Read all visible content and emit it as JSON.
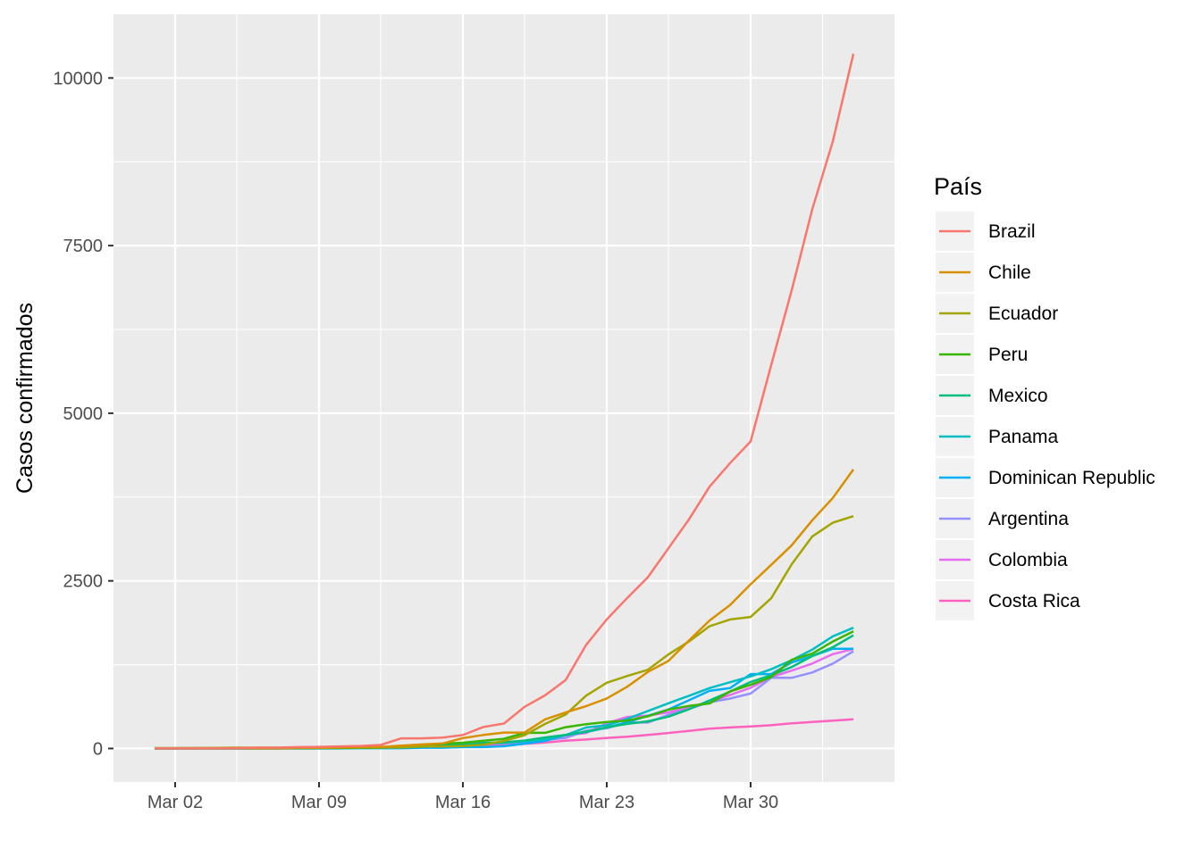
{
  "chart_data": {
    "type": "line",
    "ylabel": "Casos confirmados",
    "legend_title": "País",
    "legend_position": "right",
    "grid": true,
    "x_tick_labels": [
      "Mar 02",
      "Mar 09",
      "Mar 16",
      "Mar 23",
      "Mar 30"
    ],
    "x_tick_dates": [
      "2020-03-02",
      "2020-03-09",
      "2020-03-16",
      "2020-03-23",
      "2020-03-30"
    ],
    "xlim": [
      "2020-02-28",
      "2020-04-06"
    ],
    "y_ticks": [
      0,
      2500,
      5000,
      7500,
      10000
    ],
    "ylim": [
      -500,
      10950
    ],
    "x": [
      "2020-03-01",
      "2020-03-02",
      "2020-03-03",
      "2020-03-04",
      "2020-03-05",
      "2020-03-06",
      "2020-03-07",
      "2020-03-08",
      "2020-03-09",
      "2020-03-10",
      "2020-03-11",
      "2020-03-12",
      "2020-03-13",
      "2020-03-14",
      "2020-03-15",
      "2020-03-16",
      "2020-03-17",
      "2020-03-18",
      "2020-03-19",
      "2020-03-20",
      "2020-03-21",
      "2020-03-22",
      "2020-03-23",
      "2020-03-24",
      "2020-03-25",
      "2020-03-26",
      "2020-03-27",
      "2020-03-28",
      "2020-03-29",
      "2020-03-30",
      "2020-03-31",
      "2020-04-01",
      "2020-04-02",
      "2020-04-03",
      "2020-04-04"
    ],
    "series": [
      {
        "name": "Brazil",
        "color": "#F8766D",
        "values": [
          2,
          2,
          2,
          4,
          4,
          13,
          13,
          20,
          25,
          31,
          38,
          52,
          151,
          151,
          162,
          200,
          321,
          372,
          621,
          793,
          1021,
          1546,
          1924,
          2247,
          2554,
          2985,
          3417,
          3904,
          4256,
          4579,
          5717,
          6836,
          8044,
          9056,
          10360
        ]
      },
      {
        "name": "Chile",
        "color": "#D89000",
        "values": [
          0,
          0,
          1,
          1,
          4,
          4,
          4,
          8,
          10,
          13,
          23,
          23,
          43,
          61,
          74,
          155,
          201,
          238,
          238,
          434,
          537,
          632,
          746,
          922,
          1142,
          1306,
          1610,
          1909,
          2139,
          2449,
          2738,
          3031,
          3404,
          3737,
          4161
        ]
      },
      {
        "name": "Ecuador",
        "color": "#A3A500",
        "values": [
          6,
          6,
          7,
          10,
          13,
          13,
          13,
          14,
          15,
          15,
          17,
          17,
          17,
          28,
          28,
          37,
          58,
          111,
          199,
          367,
          506,
          789,
          981,
          1082,
          1173,
          1403,
          1595,
          1823,
          1924,
          1962,
          2240,
          2748,
          3163,
          3368,
          3465
        ]
      },
      {
        "name": "Peru",
        "color": "#39B600",
        "values": [
          0,
          0,
          0,
          0,
          0,
          1,
          1,
          6,
          7,
          9,
          11,
          11,
          38,
          43,
          71,
          86,
          117,
          145,
          234,
          234,
          318,
          363,
          395,
          416,
          480,
          580,
          635,
          671,
          852,
          950,
          1065,
          1323,
          1414,
          1595,
          1746
        ]
      },
      {
        "name": "Mexico",
        "color": "#00BF7D",
        "values": [
          5,
          5,
          5,
          5,
          5,
          6,
          6,
          7,
          7,
          7,
          8,
          12,
          12,
          26,
          41,
          53,
          82,
          93,
          118,
          164,
          203,
          251,
          316,
          367,
          405,
          475,
          585,
          717,
          848,
          993,
          1094,
          1215,
          1378,
          1510,
          1688
        ]
      },
      {
        "name": "Panama",
        "color": "#00BFC4",
        "values": [
          0,
          0,
          0,
          0,
          0,
          0,
          0,
          0,
          1,
          1,
          8,
          14,
          27,
          36,
          43,
          55,
          69,
          86,
          109,
          137,
          200,
          313,
          345,
          443,
          558,
          674,
          786,
          901,
          989,
          1075,
          1181,
          1317,
          1475,
          1673,
          1801
        ]
      },
      {
        "name": "Dominican Republic",
        "color": "#00B0F6",
        "values": [
          1,
          1,
          1,
          1,
          1,
          2,
          2,
          5,
          5,
          5,
          5,
          5,
          5,
          11,
          11,
          21,
          21,
          34,
          72,
          112,
          202,
          245,
          312,
          392,
          488,
          581,
          719,
          859,
          901,
          1109,
          1109,
          1284,
          1380,
          1488,
          1488
        ]
      },
      {
        "name": "Argentina",
        "color": "#9590FF",
        "values": [
          0,
          0,
          1,
          1,
          1,
          2,
          8,
          12,
          12,
          17,
          19,
          19,
          31,
          34,
          45,
          56,
          68,
          79,
          97,
          128,
          158,
          266,
          301,
          387,
          387,
          502,
          589,
          690,
          745,
          820,
          1054,
          1054,
          1133,
          1265,
          1451
        ]
      },
      {
        "name": "Colombia",
        "color": "#E76BF3",
        "values": [
          0,
          0,
          0,
          0,
          0,
          1,
          1,
          1,
          1,
          3,
          9,
          9,
          13,
          22,
          34,
          54,
          65,
          93,
          102,
          128,
          196,
          231,
          378,
          470,
          491,
          539,
          608,
          702,
          798,
          906,
          1065,
          1161,
          1267,
          1406,
          1485
        ]
      },
      {
        "name": "Costa Rica",
        "color": "#FF62BC",
        "values": [
          0,
          0,
          0,
          0,
          0,
          1,
          1,
          5,
          9,
          9,
          13,
          22,
          23,
          26,
          27,
          35,
          41,
          50,
          69,
          89,
          117,
          134,
          158,
          177,
          201,
          231,
          263,
          295,
          314,
          330,
          347,
          375,
          396,
          416,
          435
        ]
      }
    ]
  }
}
